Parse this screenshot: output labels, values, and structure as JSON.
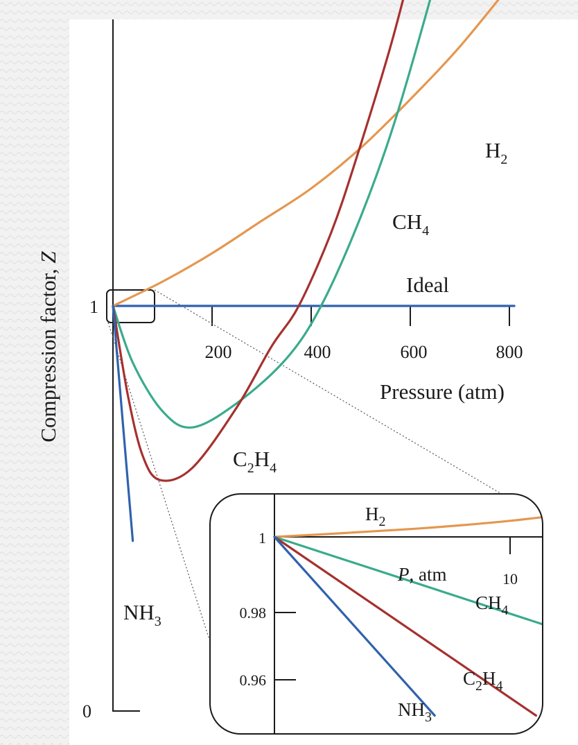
{
  "chart_data": [
    {
      "type": "line",
      "ylabel_text": "Compression factor, ",
      "ylabel_var": "Z",
      "xlabel": "Pressure (atm)",
      "xlim": [
        0,
        810
      ],
      "x_ticks": [
        "200",
        "400",
        "600",
        "800"
      ],
      "y_ticks": [
        "1",
        "0"
      ],
      "series": [
        {
          "name": "H",
          "name_sub": "2",
          "color": "#e4974f",
          "points": [
            [
              0,
              1.0
            ],
            [
              100,
              1.06
            ],
            [
              200,
              1.13
            ],
            [
              300,
              1.21
            ],
            [
              400,
              1.29
            ],
            [
              500,
              1.39
            ],
            [
              600,
              1.51
            ],
            [
              700,
              1.64
            ],
            [
              820,
              1.82
            ]
          ]
        },
        {
          "name": "CH",
          "name_sub": "4",
          "color": "#3aab8c",
          "points": [
            [
              0,
              1.0
            ],
            [
              40,
              0.86
            ],
            [
              100,
              0.74
            ],
            [
              160,
              0.7
            ],
            [
              250,
              0.76
            ],
            [
              350,
              0.87
            ],
            [
              420,
              1.0
            ],
            [
              500,
              1.22
            ],
            [
              570,
              1.46
            ],
            [
              650,
              1.8
            ],
            [
              700,
              2.03
            ]
          ]
        },
        {
          "name": "C",
          "name_sub": "2",
          "name_mid": "H",
          "name_sub2": "4",
          "color": "#a5312f",
          "points": [
            [
              0,
              1.0
            ],
            [
              30,
              0.78
            ],
            [
              60,
              0.63
            ],
            [
              95,
              0.57
            ],
            [
              160,
              0.6
            ],
            [
              250,
              0.75
            ],
            [
              320,
              0.9
            ],
            [
              375,
              1.0
            ],
            [
              440,
              1.18
            ],
            [
              490,
              1.36
            ],
            [
              560,
              1.64
            ],
            [
              620,
              1.92
            ],
            [
              645,
              2.03
            ]
          ]
        },
        {
          "name": "NH",
          "name_sub": "3",
          "color": "#2f62ad",
          "points": [
            [
              0,
              1.0
            ],
            [
              40,
              0.42
            ]
          ]
        },
        {
          "name": "Ideal",
          "color": "#2f62ad",
          "points": [
            [
              0,
              1.0
            ],
            [
              810,
              1.0
            ]
          ]
        }
      ]
    },
    {
      "type": "line",
      "xlabel_var": "P",
      "xlabel_unit": ", atm",
      "x_ticks": [
        "10"
      ],
      "y_ticks": [
        "1",
        "0.98",
        "0.96"
      ],
      "series": [
        {
          "name": "H",
          "name_sub": "2",
          "color": "#e4974f",
          "points": [
            [
              0,
              1.0
            ],
            [
              2,
              1.0007
            ],
            [
              4,
              1.0015
            ],
            [
              6,
              1.0023
            ],
            [
              8,
              1.0033
            ],
            [
              10,
              1.0045
            ],
            [
              12,
              1.006
            ]
          ]
        },
        {
          "name": "CH",
          "name_sub": "4",
          "color": "#3aab8c",
          "points": [
            [
              0,
              1.0
            ],
            [
              13.5,
              0.971
            ]
          ]
        },
        {
          "name": "C",
          "name_sub": "2",
          "name_mid": "H",
          "name_sub2": "4",
          "color": "#a5312f",
          "points": [
            [
              0,
              1.0
            ],
            [
              11.1,
              0.95
            ]
          ]
        },
        {
          "name": "NH",
          "name_sub": "3",
          "color": "#2f62ad",
          "points": [
            [
              0,
              1.0
            ],
            [
              6.8,
              0.95
            ]
          ]
        }
      ]
    }
  ]
}
